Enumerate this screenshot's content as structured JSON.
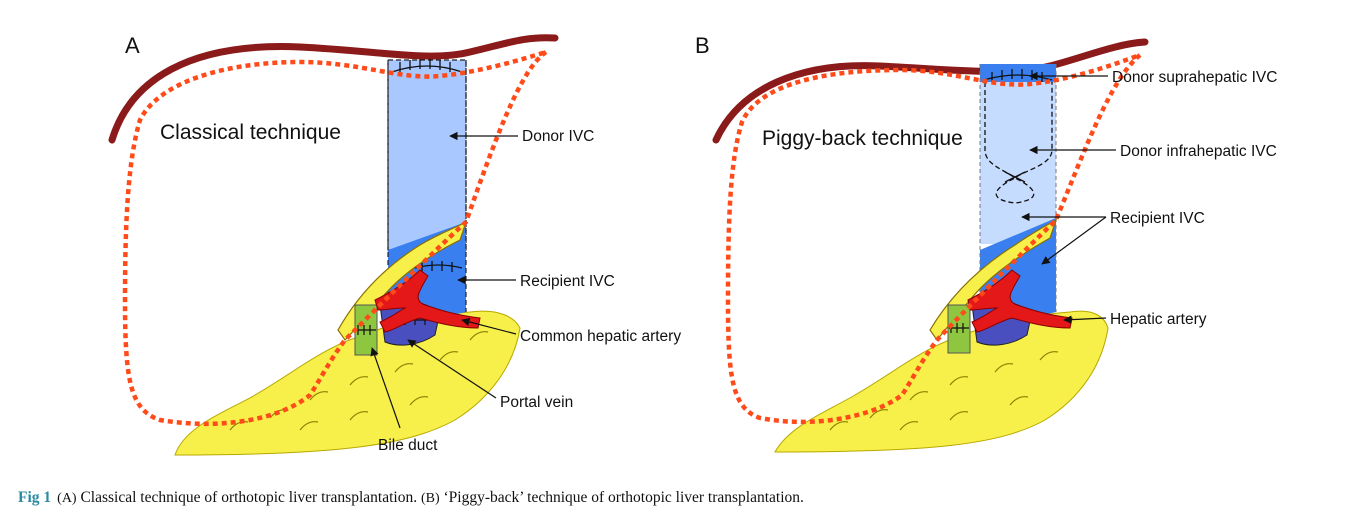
{
  "panel_a": {
    "letter": "A",
    "title": "Classical technique",
    "labels": {
      "donor_ivc": "Donor IVC",
      "recipient_ivc": "Recipient IVC",
      "common_hepatic_artery": "Common hepatic artery",
      "portal_vein": "Portal vein",
      "bile_duct": "Bile duct"
    }
  },
  "panel_b": {
    "letter": "B",
    "title": "Piggy-back technique",
    "labels": {
      "donor_suprahepatic_ivc": "Donor suprahepatic IVC",
      "donor_infrahepatic_ivc": "Donor infrahepatic IVC",
      "recipient_ivc": "Recipient IVC",
      "hepatic_artery": "Hepatic artery"
    }
  },
  "caption": {
    "fig_label": "Fig 1",
    "a_tag": "(A)",
    "a_text": "Classical technique of orthotopic liver transplantation.",
    "b_tag": "(B)",
    "b_text": "‘Piggy-back’ technique of orthotopic liver transplantation."
  },
  "colors": {
    "diaphragm": "#8b1a1a",
    "liver_outline": "#ff4a1a",
    "donor_ivc": "#a8c8ff",
    "recipient_ivc": "#3a7ff0",
    "artery": "#e41818",
    "portal_vein": "#4a4fc0",
    "bile_duct": "#8ec63f",
    "pancreas": "#f7f04a",
    "caption_label": "#2a8aa0"
  }
}
